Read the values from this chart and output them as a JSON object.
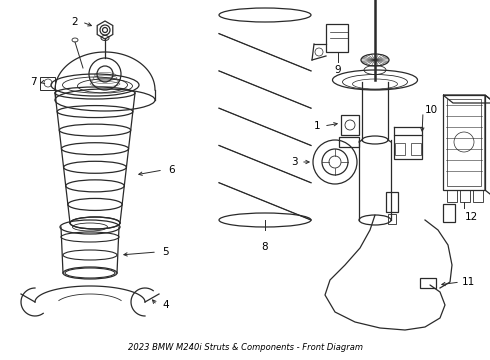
{
  "title": "2023 BMW M240i Struts & Components - Front Diagram",
  "bg_color": "#ffffff",
  "line_color": "#2a2a2a",
  "figsize": [
    4.9,
    3.6
  ],
  "dpi": 100
}
